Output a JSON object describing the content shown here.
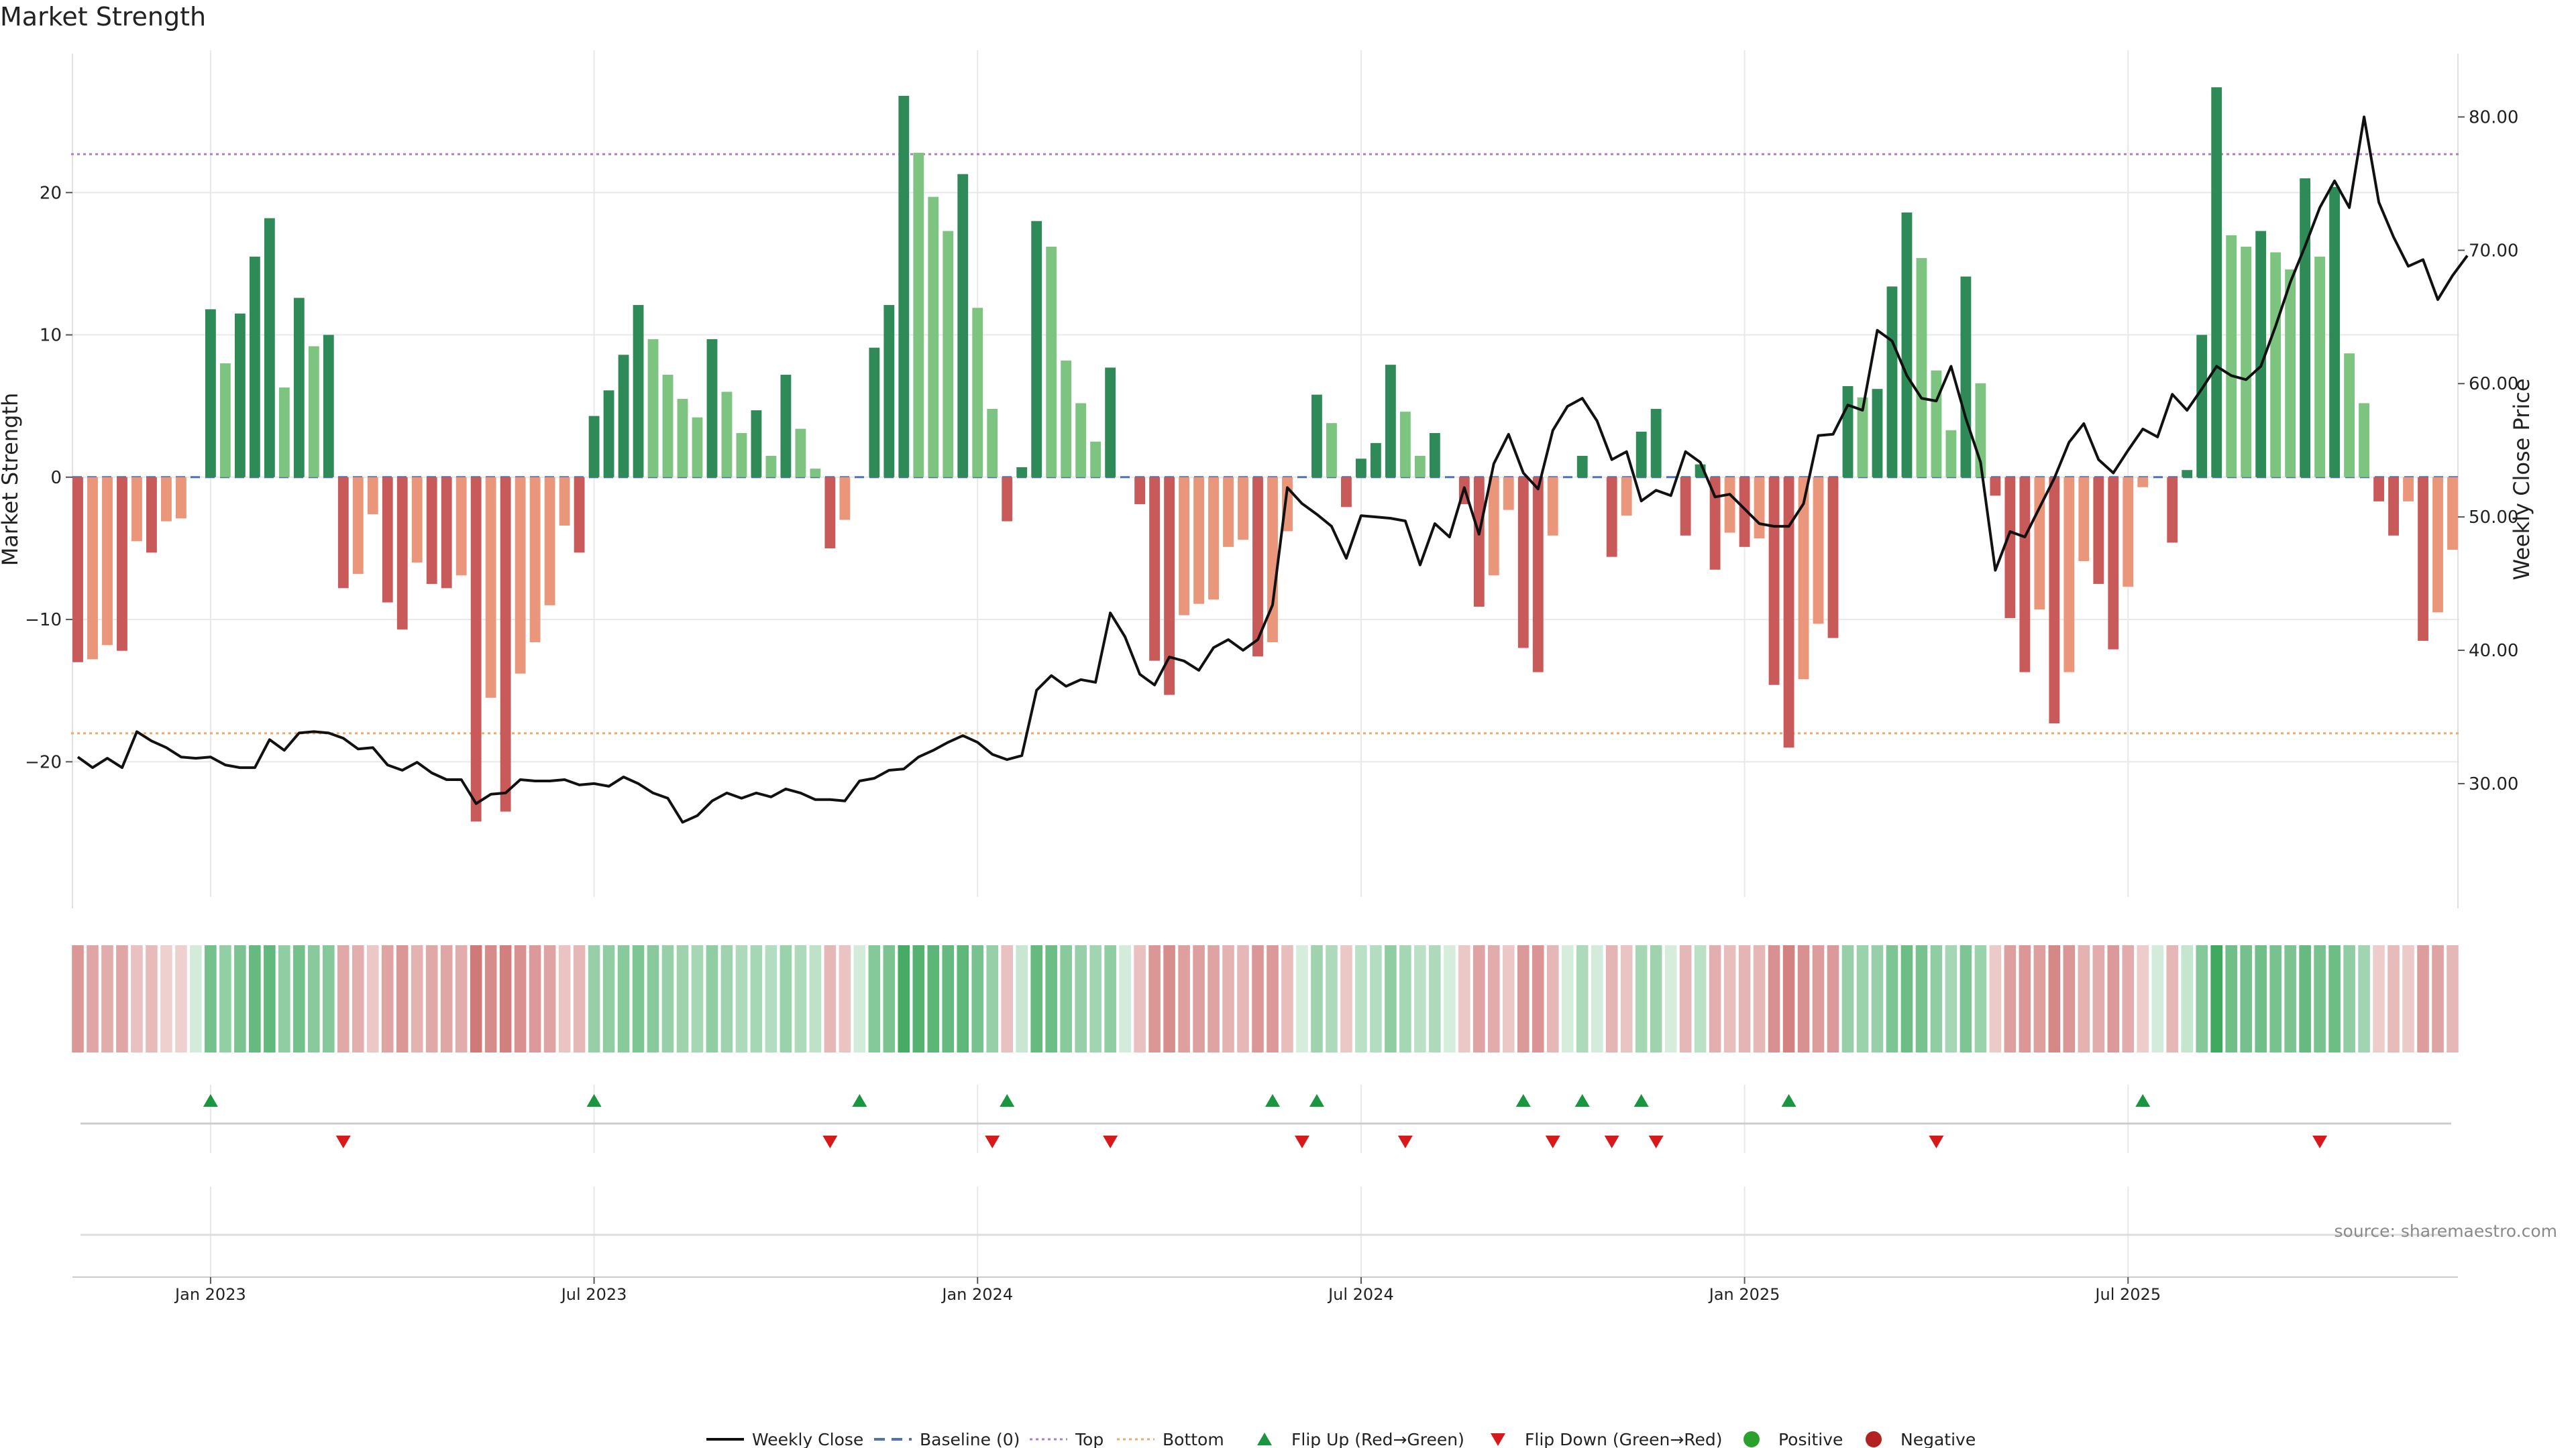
{
  "chart_data": {
    "type": "bar",
    "title": "Market Strength",
    "ylabel": "Market Strength",
    "y2label": "Weekly Close Price",
    "ylim": [
      -29.5,
      30
    ],
    "y2lim": [
      21.5,
      85
    ],
    "yticks": [
      20,
      10,
      0,
      -10,
      -20
    ],
    "ytick_labels": [
      "20",
      "10",
      "0",
      "−10",
      "−20"
    ],
    "y2ticks": [
      80,
      70,
      60,
      50,
      40,
      30
    ],
    "y2tick_labels": [
      "80.00",
      "70.00",
      "60.00",
      "50.00",
      "40.00",
      "30.00"
    ],
    "top_line": 22.7,
    "bottom_line": -18.0,
    "x_ticks": [
      {
        "label": "Jan 2023",
        "index": 9
      },
      {
        "label": "Jul 2023",
        "index": 35
      },
      {
        "label": "Jan 2024",
        "index": 61
      },
      {
        "label": "Jul 2024",
        "index": 87
      },
      {
        "label": "Jan 2025",
        "index": 113
      },
      {
        "label": "Jul 2025",
        "index": 139
      }
    ],
    "strength": [
      -13.0,
      -12.8,
      -11.8,
      -12.2,
      -4.5,
      -5.3,
      -3.1,
      -2.9,
      0,
      11.8,
      8.0,
      11.5,
      15.5,
      18.2,
      6.3,
      12.6,
      9.2,
      10.0,
      -7.8,
      -6.8,
      -2.6,
      -8.8,
      -10.7,
      -6.0,
      -7.5,
      -7.8,
      -6.9,
      -24.2,
      -15.5,
      -23.5,
      -13.8,
      -11.6,
      -9.0,
      -3.4,
      -5.3,
      4.3,
      6.1,
      8.6,
      12.1,
      9.7,
      7.2,
      5.5,
      4.2,
      9.7,
      6.0,
      3.1,
      4.7,
      1.5,
      7.2,
      3.4,
      0.6,
      -5.0,
      -3.0,
      0,
      9.1,
      12.1,
      26.8,
      22.8,
      19.7,
      17.3,
      21.3,
      11.9,
      4.8,
      -3.1,
      0.7,
      18.0,
      16.2,
      8.2,
      5.2,
      2.5,
      7.7,
      0,
      -1.9,
      -12.9,
      -15.3,
      -9.7,
      -8.9,
      -8.6,
      -4.9,
      -4.4,
      -12.6,
      -11.6,
      -3.8,
      0,
      5.8,
      3.8,
      -2.1,
      1.3,
      2.4,
      7.9,
      4.6,
      1.5,
      3.1,
      0,
      -1.9,
      -9.1,
      -6.9,
      -2.3,
      -12.0,
      -13.7,
      -4.1,
      0,
      1.5,
      0,
      -5.6,
      -2.7,
      3.2,
      4.8,
      0,
      -4.1,
      0.9,
      -6.5,
      -3.9,
      -4.9,
      -4.3,
      -14.6,
      -19.0,
      -14.2,
      -10.3,
      -11.3,
      6.4,
      5.6,
      6.2,
      13.4,
      18.6,
      15.4,
      7.5,
      3.3,
      14.1,
      6.6,
      -1.3,
      -9.9,
      -13.7,
      -9.3,
      -17.3,
      -13.7,
      -5.9,
      -7.5,
      -12.1,
      -7.7,
      -0.7,
      0,
      -4.6,
      0.5,
      10.0,
      27.4,
      17.0,
      16.2,
      17.3,
      15.8,
      14.6,
      21.0,
      15.5,
      20.4,
      8.7,
      5.2,
      -1.7,
      -4.1,
      -1.7,
      -11.5,
      -9.5,
      -5.1
    ],
    "weekly_close": [
      32.0,
      31.2,
      31.9,
      31.2,
      33.9,
      33.2,
      32.7,
      32.0,
      31.9,
      32.0,
      31.4,
      31.2,
      31.2,
      33.3,
      32.5,
      33.8,
      33.9,
      33.8,
      33.4,
      32.6,
      32.7,
      31.4,
      31.0,
      31.6,
      30.8,
      30.3,
      30.3,
      28.5,
      29.2,
      29.3,
      30.3,
      30.2,
      30.2,
      30.3,
      29.9,
      30.0,
      29.8,
      30.5,
      30.0,
      29.3,
      28.9,
      27.1,
      27.6,
      28.7,
      29.3,
      28.9,
      29.3,
      29.0,
      29.6,
      29.3,
      28.8,
      28.8,
      28.7,
      30.2,
      30.4,
      31.0,
      31.1,
      32.0,
      32.5,
      33.1,
      33.6,
      33.1,
      32.2,
      31.8,
      32.1,
      37.0,
      38.1,
      37.3,
      37.8,
      37.6,
      42.8,
      41.0,
      38.2,
      37.4,
      39.5,
      39.2,
      38.5,
      40.2,
      40.8,
      40.0,
      40.8,
      43.4,
      52.2,
      51.0,
      50.2,
      49.3,
      46.9,
      50.1,
      50.0,
      49.9,
      49.7,
      46.4,
      49.5,
      48.5,
      52.2,
      48.7,
      54.0,
      56.2,
      53.3,
      52.1,
      56.5,
      58.3,
      58.9,
      57.2,
      54.3,
      54.9,
      51.2,
      52.0,
      51.6,
      54.9,
      54.1,
      51.5,
      51.7,
      50.6,
      49.5,
      49.3,
      49.3,
      51.0,
      56.1,
      56.2,
      58.4,
      58.0,
      64.0,
      63.2,
      60.6,
      58.9,
      58.7,
      61.3,
      57.4,
      54.1,
      46.0,
      48.9,
      48.5,
      50.7,
      52.9,
      55.6,
      57.0,
      54.3,
      53.3,
      55.0,
      56.6,
      56.0,
      59.2,
      58.0,
      59.6,
      61.3,
      60.6,
      60.3,
      61.3,
      64.3,
      67.6,
      70.3,
      73.2,
      75.2,
      73.2,
      80.0,
      73.6,
      71.0,
      68.8,
      69.3,
      66.3,
      68.1,
      69.6
    ],
    "heat": [
      -0.52,
      -0.42,
      -0.38,
      -0.42,
      -0.24,
      -0.28,
      -0.14,
      -0.14,
      0.08,
      0.62,
      0.44,
      0.58,
      0.7,
      0.72,
      0.46,
      0.62,
      0.5,
      0.52,
      -0.4,
      -0.36,
      -0.2,
      -0.44,
      -0.52,
      -0.34,
      -0.4,
      -0.42,
      -0.38,
      -0.72,
      -0.6,
      -0.68,
      -0.56,
      -0.5,
      -0.44,
      -0.22,
      -0.3,
      0.42,
      0.46,
      0.5,
      0.56,
      0.5,
      0.42,
      0.38,
      0.34,
      0.46,
      0.38,
      0.3,
      0.34,
      0.26,
      0.4,
      0.3,
      0.2,
      -0.3,
      -0.22,
      0.08,
      0.52,
      0.58,
      0.88,
      0.8,
      0.76,
      0.7,
      0.74,
      0.6,
      0.42,
      -0.24,
      0.14,
      0.7,
      0.66,
      0.5,
      0.42,
      0.36,
      0.46,
      0.08,
      -0.24,
      -0.52,
      -0.58,
      -0.46,
      -0.46,
      -0.44,
      -0.34,
      -0.3,
      -0.52,
      -0.5,
      -0.26,
      0.06,
      0.38,
      0.3,
      -0.2,
      0.22,
      0.26,
      0.46,
      0.34,
      0.22,
      0.3,
      0.06,
      -0.2,
      -0.44,
      -0.38,
      -0.2,
      -0.5,
      -0.54,
      -0.3,
      0.06,
      0.3,
      0.08,
      -0.32,
      -0.22,
      0.34,
      0.38,
      0.06,
      -0.3,
      0.22,
      -0.36,
      -0.26,
      -0.32,
      -0.3,
      -0.56,
      -0.66,
      -0.56,
      -0.48,
      -0.5,
      0.42,
      0.4,
      0.42,
      0.56,
      0.66,
      0.6,
      0.46,
      0.34,
      0.56,
      0.4,
      -0.18,
      -0.46,
      -0.52,
      -0.46,
      -0.62,
      -0.52,
      -0.34,
      -0.38,
      -0.5,
      -0.38,
      -0.16,
      0.08,
      -0.3,
      0.16,
      0.52,
      0.92,
      0.64,
      0.62,
      0.64,
      0.6,
      0.58,
      0.7,
      0.6,
      0.66,
      0.46,
      0.36,
      -0.16,
      -0.28,
      -0.18,
      -0.48,
      -0.44,
      -0.3
    ],
    "flip_up": [
      9,
      35,
      53,
      63,
      81,
      84,
      98,
      102,
      106,
      116,
      140
    ],
    "flip_down": [
      18,
      51,
      62,
      70,
      83,
      90,
      100,
      104,
      107,
      126,
      152
    ],
    "colors": {
      "pos_strong": "#2e8b57",
      "pos_weak": "#7cc47f",
      "neg_strong": "#c95a5a",
      "neg_weak": "#e9967a",
      "weekly_close": "#111111",
      "baseline": "#4c72b0",
      "top": "#b07cc6",
      "bottom": "#f0a868",
      "flip_up": "#1a9641",
      "flip_down": "#d7191c",
      "positive": "#2ca02c",
      "negative": "#b22222",
      "grid": "#e8e8e8"
    },
    "legend": [
      {
        "label": "Weekly Close",
        "kind": "line-solid",
        "color": "#111111"
      },
      {
        "label": "Baseline (0)",
        "kind": "line-dashed",
        "color": "#4c72b0"
      },
      {
        "label": "Top",
        "kind": "line-dotted",
        "color": "#b07cc6"
      },
      {
        "label": "Bottom",
        "kind": "line-dotted",
        "color": "#f0a868"
      },
      {
        "label": "Flip Up (Red→Green)",
        "kind": "tri-up",
        "color": "#1a9641"
      },
      {
        "label": "Flip Down (Green→Red)",
        "kind": "tri-down",
        "color": "#d7191c"
      },
      {
        "label": "Positive",
        "kind": "dot",
        "color": "#2ca02c"
      },
      {
        "label": "Negative",
        "kind": "dot",
        "color": "#b22222"
      }
    ],
    "legend_position": "bottom-center",
    "grid": true
  },
  "source": "source: sharemaestro.com"
}
